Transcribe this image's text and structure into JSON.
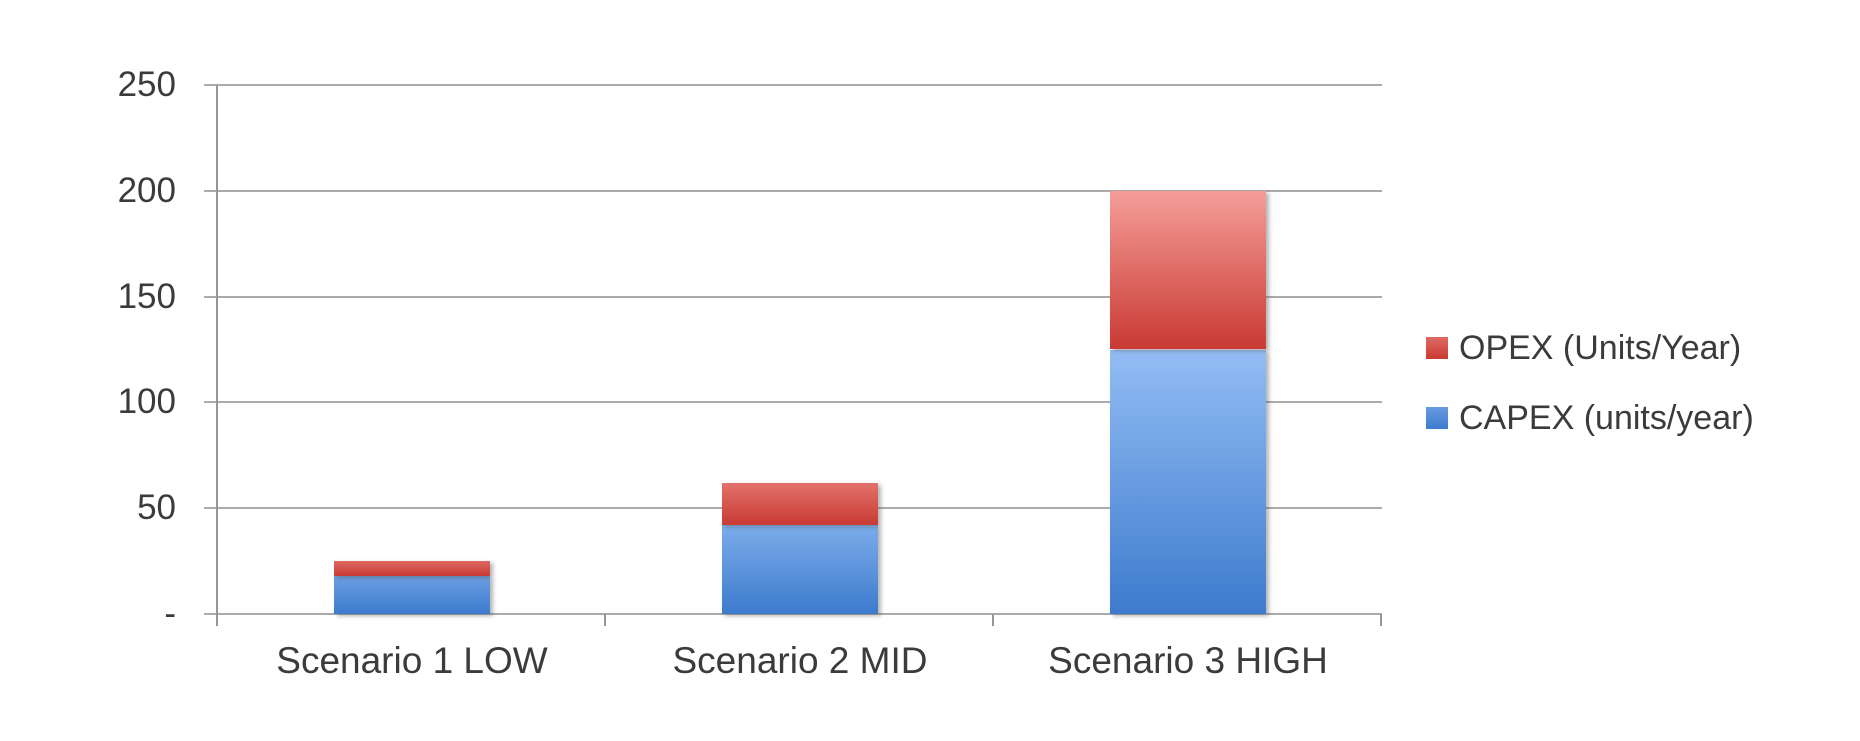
{
  "chart_data": {
    "type": "bar",
    "stacked": true,
    "title": "",
    "xlabel": "",
    "ylabel": "",
    "categories": [
      "Scenario 1 LOW",
      "Scenario 2 MID",
      "Scenario 3 HIGH"
    ],
    "series": [
      {
        "name": "CAPEX (units/year)",
        "values": [
          18,
          42,
          125
        ],
        "color_light": "#93bdf4",
        "color_dark": "#3d7bcd"
      },
      {
        "name": "OPEX (Units/Year)",
        "values": [
          7,
          20,
          75
        ],
        "color_light": "#f59e99",
        "color_dark": "#c93a33"
      }
    ],
    "legend": [
      {
        "label": "OPEX (Units/Year)",
        "series": 1
      },
      {
        "label": "CAPEX (units/year)",
        "series": 0
      }
    ],
    "legend_position": "right",
    "ylim": [
      0,
      250
    ],
    "y_ticks": {
      "values": [
        250,
        200,
        150,
        100,
        50,
        0
      ],
      "labels": [
        "250",
        "200",
        "150",
        "100",
        "50",
        "-"
      ]
    },
    "grid": "horizontal"
  },
  "colors": {
    "gridline": "#ababab",
    "axis": "#969696",
    "text": "#3b3b3b",
    "background": "#ffffff"
  }
}
